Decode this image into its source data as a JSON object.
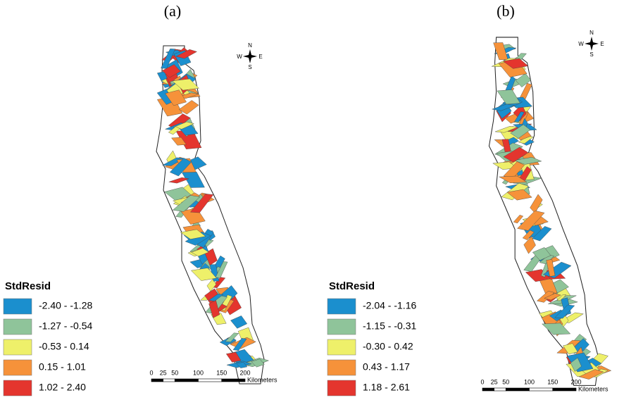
{
  "panels": [
    {
      "label": "(a)",
      "legend": {
        "title": "StdResid",
        "classes": [
          {
            "label": "-2.40 - -1.28",
            "color": "#1b8fce"
          },
          {
            "label": "-1.27 - -0.54",
            "color": "#8fc49a"
          },
          {
            "label": "-0.53 - 0.14",
            "color": "#eef06a"
          },
          {
            "label": "0.15 - 1.01",
            "color": "#f6923a"
          },
          {
            "label": "1.02 - 2.40",
            "color": "#e4352e"
          }
        ]
      },
      "scale": {
        "ticks": [
          "0",
          "25",
          "50",
          "100",
          "150",
          "200"
        ],
        "unit": "Kilometers"
      },
      "compass": {
        "n": "N",
        "e": "E",
        "s": "S",
        "w": "W"
      }
    },
    {
      "label": "(b)",
      "legend": {
        "title": "StdResid",
        "classes": [
          {
            "label": "-2.04 - -1.16",
            "color": "#1b8fce"
          },
          {
            "label": "-1.15 - -0.31",
            "color": "#8fc49a"
          },
          {
            "label": "-0.30 - 0.42",
            "color": "#eef06a"
          },
          {
            "label": "0.43 - 1.17",
            "color": "#f6923a"
          },
          {
            "label": "1.18 - 2.61",
            "color": "#e4352e"
          }
        ]
      },
      "scale": {
        "ticks": [
          "0",
          "25",
          "50",
          "100",
          "150",
          "200"
        ],
        "unit": "Kilometers"
      },
      "compass": {
        "n": "N",
        "e": "E",
        "s": "S",
        "w": "W"
      }
    }
  ]
}
